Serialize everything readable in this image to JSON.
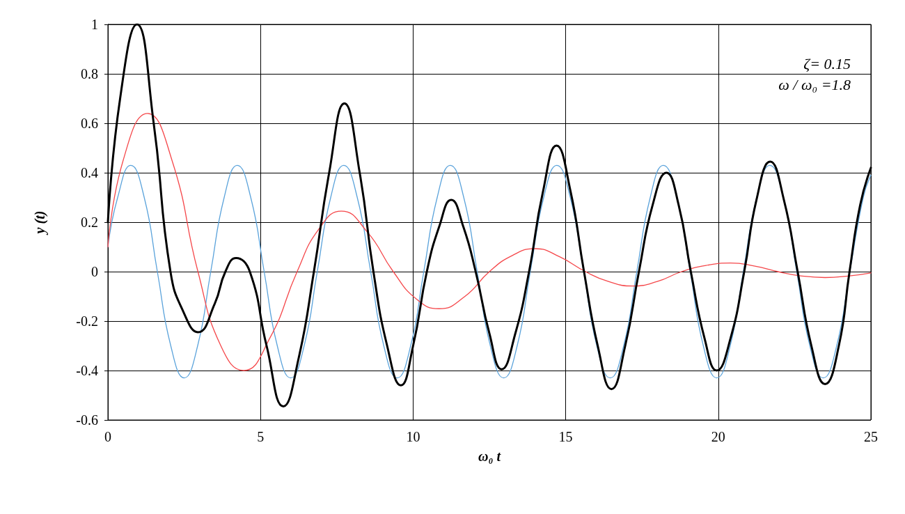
{
  "chart_data": {
    "type": "line",
    "xlabel": "ω₀ t",
    "ylabel": "y (t)",
    "annotations": [
      "ζ= 0.15",
      "ω / ω₀ =1.8"
    ],
    "xlim": [
      0,
      25
    ],
    "xticks": [
      0,
      5,
      10,
      15,
      20,
      25
    ],
    "ylim": [
      -0.6,
      1
    ],
    "yticks": [
      -0.6,
      -0.4,
      -0.2,
      0,
      0.2,
      0.4,
      0.6,
      0.8,
      1
    ],
    "grid": true,
    "marker": "none",
    "line_style": "solid",
    "series": [
      {
        "color": "#5ba3db",
        "x": [
          0,
          0.32,
          0.75,
          1.19,
          1.62,
          2.06,
          2.5,
          2.94,
          3.37,
          3.81,
          4.24,
          4.68,
          5.12,
          5.55,
          5.99,
          6.43,
          6.86,
          7.3,
          7.73,
          8.17,
          8.61,
          9.04,
          9.48,
          9.92,
          10.35,
          10.79,
          11.22,
          11.66,
          12.1,
          12.53,
          12.97,
          13.41,
          13.84,
          14.28,
          14.71,
          15.15,
          15.59,
          16.02,
          16.46,
          16.9,
          17.33,
          17.77,
          18.2,
          18.64,
          19.08,
          19.51,
          19.95,
          20.39,
          20.82,
          21.26,
          21.69,
          22.13,
          22.57,
          23,
          23.44,
          23.88,
          24.31,
          24.75,
          25
        ],
        "values": [
          0.1,
          0.3,
          0.43,
          0.3,
          0,
          -0.3,
          -0.43,
          -0.3,
          0,
          0.3,
          0.43,
          0.3,
          0,
          -0.3,
          -0.43,
          -0.3,
          0,
          0.3,
          0.43,
          0.3,
          0,
          -0.3,
          -0.43,
          -0.3,
          0,
          0.3,
          0.43,
          0.3,
          0,
          -0.3,
          -0.43,
          -0.3,
          0,
          0.3,
          0.43,
          0.3,
          0,
          -0.3,
          -0.43,
          -0.3,
          0,
          0.3,
          0.43,
          0.3,
          0,
          -0.3,
          -0.43,
          -0.3,
          0,
          0.3,
          0.43,
          0.3,
          0,
          -0.3,
          -0.43,
          -0.3,
          0,
          0.3,
          0.39
        ]
      },
      {
        "color": "#f5474a",
        "x": [
          0,
          0.5,
          1.3,
          2.1,
          2.95,
          3.7,
          4.45,
          5.3,
          6.2,
          6.9,
          7.65,
          8.5,
          9.35,
          10.1,
          10.85,
          11.7,
          12.5,
          13.25,
          14,
          14.8,
          15.65,
          16.4,
          17.2,
          18,
          18.8,
          19.6,
          20.4,
          21.2,
          21.95,
          22.7,
          23.5,
          24.3,
          25
        ],
        "values": [
          0.1,
          0.45,
          0.64,
          0.45,
          0,
          -0.3,
          -0.4,
          -0.27,
          0,
          0.17,
          0.245,
          0.16,
          0,
          -0.11,
          -0.15,
          -0.1,
          0,
          0.065,
          0.093,
          0.06,
          0,
          -0.04,
          -0.058,
          -0.04,
          0,
          0.025,
          0.035,
          0.022,
          0,
          -0.017,
          -0.024,
          -0.017,
          -0.005
        ]
      },
      {
        "color": "#000000",
        "x": [
          0,
          0.4,
          0.95,
          1.5,
          2.05,
          2.5,
          2.95,
          3.5,
          3.85,
          4.2,
          4.65,
          5.2,
          5.75,
          6.25,
          6.75,
          7.25,
          7.75,
          8.25,
          8.7,
          9.15,
          9.6,
          10,
          10.45,
          10.85,
          11.25,
          11.65,
          12.05,
          12.5,
          12.9,
          13.35,
          13.8,
          14.25,
          14.7,
          15.15,
          15.6,
          16.05,
          16.5,
          16.95,
          17.4,
          17.85,
          18.3,
          18.7,
          19.1,
          19.55,
          19.95,
          20.4,
          20.85,
          21.25,
          21.7,
          22.15,
          22.6,
          23.05,
          23.5,
          23.95,
          24.3,
          24.65,
          25
        ],
        "values": [
          0.2,
          0.7,
          1,
          0.6,
          0,
          -0.17,
          -0.245,
          -0.13,
          0,
          0.055,
          0,
          -0.3,
          -0.545,
          -0.35,
          0,
          0.4,
          0.68,
          0.4,
          0,
          -0.3,
          -0.46,
          -0.3,
          0,
          0.18,
          0.29,
          0.18,
          0,
          -0.25,
          -0.395,
          -0.25,
          0,
          0.32,
          0.51,
          0.33,
          0,
          -0.3,
          -0.475,
          -0.3,
          0,
          0.27,
          0.4,
          0.27,
          0,
          -0.27,
          -0.4,
          -0.27,
          0,
          0.29,
          0.445,
          0.29,
          0,
          -0.3,
          -0.455,
          -0.3,
          0,
          0.27,
          0.42
        ]
      }
    ]
  }
}
